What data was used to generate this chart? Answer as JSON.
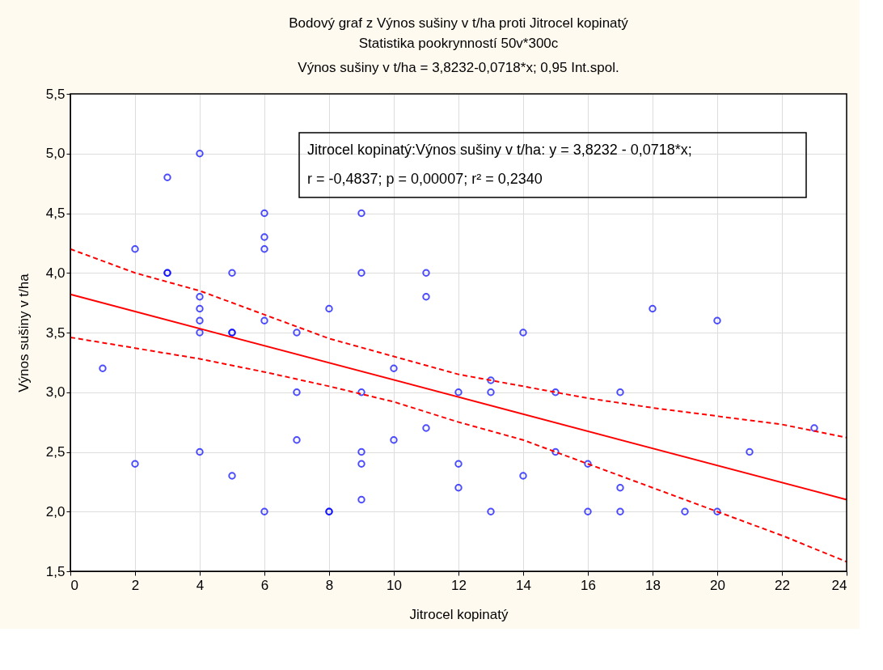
{
  "chart_data": {
    "type": "scatter",
    "title": "Bodový graf z Výnos sušiny v t/ha proti Jitrocel kopinatý",
    "subtitle": "Statistika pookrynností 50v*300c\nVýnos sušiny v t/ha = 3,8232-0,0718*x; 0,95 Int.spol.",
    "xlabel": "Jitrocel kopinatý",
    "ylabel": "Výnos sušiny v t/ha",
    "annotations": [
      "Jitrocel kopinatý:Výnos sušiny v t/ha:   y = 3,8232 - 0,0718*x;",
      "r = -0,4837; p = 0,00007; r² = 0,2340"
    ],
    "series": [
      {
        "color": "#0000ff",
        "marker": "circle",
        "x": [
          1,
          2,
          2,
          3,
          3,
          3,
          4,
          4,
          4,
          4,
          4,
          4,
          5,
          5,
          5,
          5,
          6,
          6,
          6,
          6,
          6,
          7,
          7,
          7,
          8,
          8,
          8,
          9,
          9,
          9,
          9,
          9,
          9,
          10,
          10,
          11,
          11,
          11,
          12,
          12,
          12,
          13,
          13,
          13,
          14,
          14,
          15,
          15,
          16,
          16,
          17,
          17,
          17,
          18,
          19,
          20,
          20,
          21,
          23
        ],
        "values": [
          3.2,
          4.2,
          2.4,
          4.8,
          4.0,
          4.0,
          5.0,
          3.8,
          3.7,
          3.6,
          3.5,
          2.5,
          4.0,
          3.5,
          3.5,
          2.3,
          4.5,
          4.3,
          4.2,
          3.6,
          2.0,
          3.5,
          3.0,
          2.6,
          3.7,
          2.0,
          2.0,
          4.5,
          4.0,
          3.0,
          2.5,
          2.4,
          2.1,
          3.2,
          2.6,
          4.0,
          3.8,
          2.7,
          3.0,
          2.4,
          2.2,
          3.1,
          3.0,
          2.0,
          3.5,
          2.3,
          3.0,
          2.5,
          2.4,
          2.0,
          3.0,
          2.2,
          2.0,
          3.7,
          2.0,
          3.6,
          2.0,
          2.5,
          2.7
        ]
      },
      {
        "type": "line",
        "color": "#ff0000",
        "line_style": "solid",
        "x": [
          0,
          24
        ],
        "values": [
          3.82,
          2.1
        ]
      },
      {
        "type": "line",
        "color": "#ff0000",
        "line_style": "dashed",
        "x": [
          0,
          2,
          4,
          6,
          8,
          10,
          12,
          14,
          16,
          18,
          20,
          22,
          24
        ],
        "values": [
          4.2,
          4.0,
          3.85,
          3.65,
          3.45,
          3.3,
          3.15,
          3.05,
          2.95,
          2.87,
          2.8,
          2.73,
          2.62
        ]
      },
      {
        "type": "line",
        "color": "#ff0000",
        "line_style": "dashed",
        "x": [
          0,
          2,
          4,
          6,
          8,
          10,
          12,
          14,
          16,
          18,
          20,
          22,
          24
        ],
        "values": [
          3.46,
          3.37,
          3.28,
          3.17,
          3.05,
          2.92,
          2.75,
          2.6,
          2.4,
          2.2,
          2.0,
          1.8,
          1.58
        ]
      }
    ],
    "xlim": [
      0,
      24
    ],
    "xticks": [
      0,
      2,
      4,
      6,
      8,
      10,
      12,
      14,
      16,
      18,
      20,
      22,
      24
    ],
    "ylim": [
      1.5,
      5.5
    ],
    "yticks": [
      {
        "value": 1.5,
        "label": "1,5"
      },
      {
        "value": 2.0,
        "label": "2,0"
      },
      {
        "value": 2.5,
        "label": "2,5"
      },
      {
        "value": 3.0,
        "label": "3,0"
      },
      {
        "value": 3.5,
        "label": "3,5"
      },
      {
        "value": 4.0,
        "label": "4,0"
      },
      {
        "value": 4.5,
        "label": "4,5"
      },
      {
        "value": 5.0,
        "label": "5,0"
      },
      {
        "value": 5.5,
        "label": "5,5"
      }
    ],
    "grid": true
  }
}
